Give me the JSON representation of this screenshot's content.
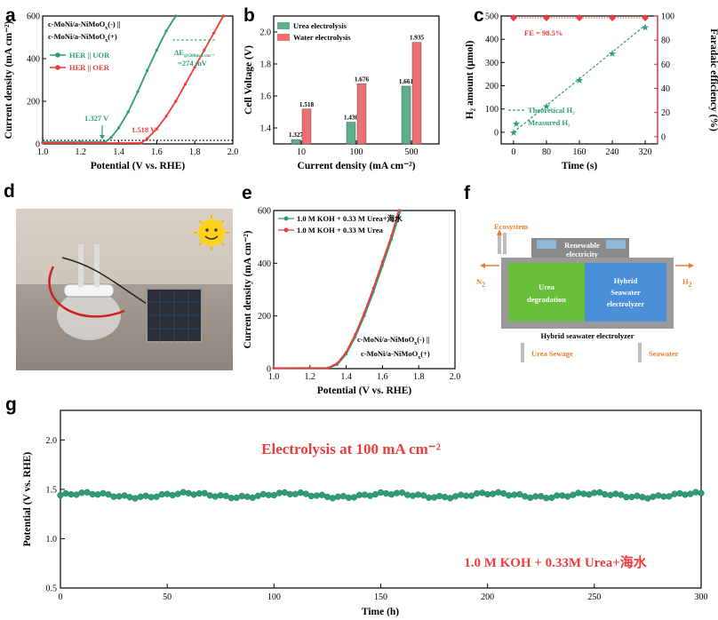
{
  "panels": {
    "a": {
      "letter": "a"
    },
    "b": {
      "letter": "b"
    },
    "c": {
      "letter": "c"
    },
    "d": {
      "letter": "d"
    },
    "e": {
      "letter": "e"
    },
    "f": {
      "letter": "f"
    },
    "g": {
      "letter": "g"
    }
  },
  "colors": {
    "green": "#2e9e72",
    "red": "#ee3b3b",
    "red_axis": "#ff2a2a",
    "bar_green": "#5fb08a",
    "bar_red": "#f07070",
    "blue_box": "#4a90d9",
    "green_box": "#6abf3a"
  },
  "chart_data": [
    {
      "id": "a",
      "type": "line",
      "xlabel": "Potential (V vs. RHE)",
      "ylabel": "Current density (mA cm⁻²)",
      "xlim": [
        1.0,
        2.0
      ],
      "ylim": [
        0,
        600
      ],
      "xticks": [
        "1.0",
        "1.2",
        "1.4",
        "1.6",
        "1.8",
        "2.0"
      ],
      "yticks": [
        "0",
        "200",
        "400",
        "600"
      ],
      "legend_title_1": "c-MoNi/a-NiMoO",
      "legend_title_1_sub": "x",
      "legend_title_1_tail": "(-) ||",
      "legend_title_2": "c-MoNi/a-NiMoO",
      "legend_title_2_sub": "x",
      "legend_title_2_tail": "(+)",
      "series": [
        {
          "name": "HER || UOR",
          "color": "#2e9e72",
          "x": [
            1.0,
            1.327,
            1.36,
            1.4,
            1.45,
            1.5,
            1.55,
            1.6,
            1.65,
            1.7
          ],
          "y": [
            8,
            8,
            30,
            75,
            150,
            245,
            345,
            440,
            530,
            600
          ]
        },
        {
          "name": "HER || OER",
          "color": "#ee3b3b",
          "x": [
            1.0,
            1.518,
            1.55,
            1.6,
            1.65,
            1.7,
            1.75,
            1.8,
            1.85,
            1.9,
            1.95
          ],
          "y": [
            4,
            4,
            25,
            70,
            130,
            200,
            280,
            360,
            440,
            520,
            600
          ]
        }
      ],
      "annotations": {
        "green": "1.327 V",
        "red": "1.518 V",
        "de_main": "ΔE",
        "de_sub": "@500mA cm⁻²",
        "de_val": "=274 mV"
      }
    },
    {
      "id": "b",
      "type": "bar",
      "xlabel": "Current density (mA cm⁻²)",
      "ylabel": "Cell Voltage (V)",
      "ylim": [
        1.3,
        2.1
      ],
      "yticks": [
        "1.4",
        "1.6",
        "1.8",
        "2.0"
      ],
      "categories": [
        "10",
        "100",
        "500"
      ],
      "series": [
        {
          "name": "Urea electrolysis",
          "values": [
            1.327,
            1.436,
            1.661
          ],
          "labels": [
            "1.327",
            "1.436",
            "1.661"
          ]
        },
        {
          "name": "Water electrolysis",
          "values": [
            1.518,
            1.676,
            1.935
          ],
          "labels": [
            "1.518",
            "1.676",
            "1.935"
          ]
        }
      ]
    },
    {
      "id": "c",
      "type": "line",
      "xlabel": "Time (s)",
      "ylabel_left": "H₂ amount (μmol)",
      "ylabel_right": "Faradaic efficiency (%)",
      "xlim": [
        -30,
        350
      ],
      "ylim": [
        -50,
        500
      ],
      "ylim_right": [
        -6,
        100
      ],
      "xticks": [
        "0",
        "80",
        "160",
        "240",
        "320"
      ],
      "yticks": [
        "0",
        "100",
        "200",
        "300",
        "400",
        "500"
      ],
      "yticks_right": [
        "0",
        "20",
        "40",
        "60",
        "80",
        "100"
      ],
      "fe_label": "FE = 98.5%",
      "fe_values": {
        "x": [
          0,
          80,
          160,
          240,
          320
        ],
        "y": [
          98.5,
          98.5,
          98.5,
          98.5,
          98.5
        ]
      },
      "series": [
        {
          "name": "Theoretical H₂",
          "x": [
            0,
            80,
            160,
            240,
            320
          ],
          "y": [
            0,
            115,
            230,
            345,
            460
          ]
        },
        {
          "name": "Measured H₂",
          "x": [
            0,
            80,
            160,
            240,
            320
          ],
          "y": [
            0,
            113,
            225,
            340,
            452
          ]
        }
      ]
    },
    {
      "id": "e",
      "type": "line",
      "xlabel": "Potential (V vs. RHE)",
      "ylabel": "Current density (mA cm⁻²)",
      "xlim": [
        1.0,
        2.0
      ],
      "ylim": [
        0,
        600
      ],
      "xticks": [
        "1.0",
        "1.2",
        "1.4",
        "1.6",
        "1.8",
        "2.0"
      ],
      "yticks": [
        "0",
        "200",
        "400",
        "600"
      ],
      "note_1": "c-MoNi/a-NiMoO",
      "note_1_sub": "x",
      "note_1_tail": "(-) ||",
      "note_2": "c-MoNi/a-NiMoO",
      "note_2_sub": "x",
      "note_2_tail": "(+)",
      "series": [
        {
          "name": "1.0 M KOH + 0.33 M Urea+海水",
          "color": "#2e9e72",
          "x": [
            1.0,
            1.3,
            1.35,
            1.4,
            1.45,
            1.5,
            1.55,
            1.6,
            1.65,
            1.7
          ],
          "y": [
            2,
            2,
            15,
            55,
            120,
            200,
            290,
            390,
            490,
            600
          ]
        },
        {
          "name": "1.0 M KOH + 0.33 M Urea",
          "color": "#ee3b3b",
          "x": [
            1.0,
            1.3,
            1.35,
            1.4,
            1.45,
            1.5,
            1.55,
            1.6,
            1.65,
            1.69
          ],
          "y": [
            2,
            3,
            20,
            62,
            130,
            212,
            305,
            405,
            505,
            600
          ]
        }
      ]
    },
    {
      "id": "g",
      "type": "scatter",
      "xlabel": "Time (h)",
      "ylabel": "Potential (V vs. RHE)",
      "xlim": [
        0,
        300
      ],
      "ylim": [
        0.5,
        2.3
      ],
      "xticks": [
        "0",
        "50",
        "100",
        "150",
        "200",
        "250",
        "300"
      ],
      "yticks": [
        "0.5",
        "1.0",
        "1.5",
        "2.0"
      ],
      "title": "Electrolysis at 100 mA cm⁻²",
      "note": "1.0 M KOH + 0.33M Urea+海水",
      "base_value": 1.44
    }
  ],
  "photo_d": {
    "description_free": true
  },
  "schematic_f": {
    "ecosystem": "Ecosystem",
    "renewable_1": "Renewable",
    "renewable_2": "electricity",
    "n2": "N",
    "n2_sub": "2",
    "h2": "H",
    "h2_sub": "2",
    "urea_1": "Urea",
    "urea_2": "degradation",
    "hybrid_1": "Hybrid",
    "hybrid_2": "Seawater",
    "hybrid_3": "electrolyzer",
    "bottom": "Hybrid  seawater electrolyzer",
    "urea_sewage": "Urea Sewage",
    "seawater": "Seawater"
  }
}
